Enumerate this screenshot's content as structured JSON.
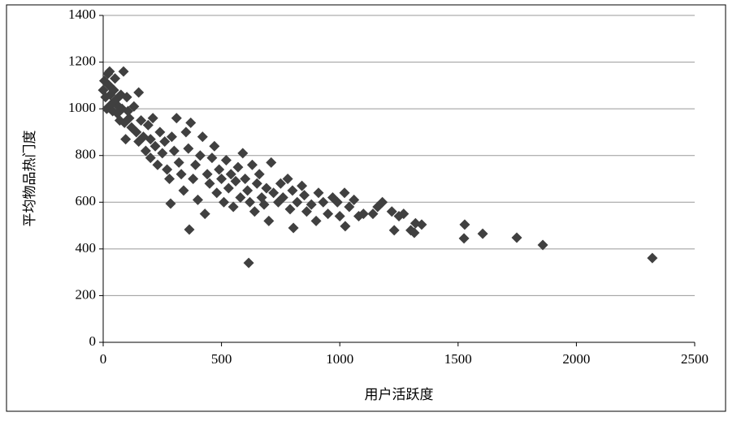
{
  "chart_data": {
    "type": "scatter",
    "x_label": "用户活跃度",
    "y_label": "平均物品热门度",
    "color": "#404040",
    "x": [
      0,
      5,
      10,
      15,
      20,
      25,
      30,
      35,
      40,
      45,
      50,
      55,
      60,
      65,
      70,
      75,
      80,
      90,
      95,
      100,
      105,
      110,
      120,
      130,
      140,
      150,
      150,
      160,
      170,
      180,
      190,
      200,
      200,
      210,
      220,
      230,
      240,
      250,
      260,
      270,
      280,
      290,
      300,
      310,
      320,
      330,
      340,
      350,
      360,
      370,
      380,
      390,
      400,
      410,
      420,
      430,
      440,
      450,
      460,
      470,
      480,
      490,
      500,
      510,
      520,
      530,
      540,
      550,
      560,
      570,
      580,
      590,
      600,
      610,
      620,
      630,
      640,
      650,
      660,
      670,
      680,
      690,
      700,
      710,
      720,
      740,
      750,
      760,
      780,
      790,
      800,
      820,
      840,
      850,
      860,
      880,
      900,
      910,
      930,
      950,
      970,
      990,
      1000,
      1020,
      1040,
      1060,
      1080,
      1100,
      1140,
      1160,
      1180,
      1220,
      1230,
      1250,
      1270,
      1300,
      1320,
      2321,
      1858,
      1748,
      1604,
      1528,
      1525,
      1346,
      1315,
      615,
      364,
      285,
      804,
      1023,
      86,
      27
    ],
    "values": [
      1080,
      1120,
      1050,
      1000,
      1150,
      1100,
      1060,
      1020,
      990,
      1080,
      1130,
      1040,
      980,
      1010,
      950,
      1060,
      1000,
      940,
      870,
      1050,
      990,
      960,
      920,
      1010,
      900,
      860,
      1070,
      950,
      880,
      820,
      930,
      790,
      870,
      960,
      840,
      760,
      900,
      810,
      860,
      740,
      700,
      880,
      820,
      960,
      770,
      720,
      650,
      900,
      830,
      940,
      700,
      760,
      610,
      800,
      880,
      550,
      720,
      680,
      790,
      840,
      640,
      740,
      700,
      600,
      780,
      660,
      720,
      580,
      690,
      750,
      620,
      810,
      700,
      650,
      600,
      760,
      560,
      680,
      720,
      620,
      590,
      660,
      520,
      770,
      640,
      600,
      680,
      620,
      700,
      570,
      650,
      600,
      670,
      630,
      560,
      590,
      520,
      640,
      600,
      550,
      620,
      600,
      540,
      640,
      580,
      610,
      540,
      550,
      550,
      580,
      600,
      560,
      480,
      540,
      550,
      480,
      510,
      361,
      417,
      448,
      465,
      504,
      445,
      504,
      469,
      340,
      483,
      594,
      490,
      497,
      1160,
      1160
    ],
    "xlim": [
      0,
      2500
    ],
    "xticks": [
      0,
      500,
      1000,
      1500,
      2000,
      2500
    ],
    "ylim": [
      0,
      1400
    ],
    "yticks": [
      0,
      200,
      400,
      600,
      800,
      1000,
      1200,
      1400
    ],
    "grid": true
  }
}
